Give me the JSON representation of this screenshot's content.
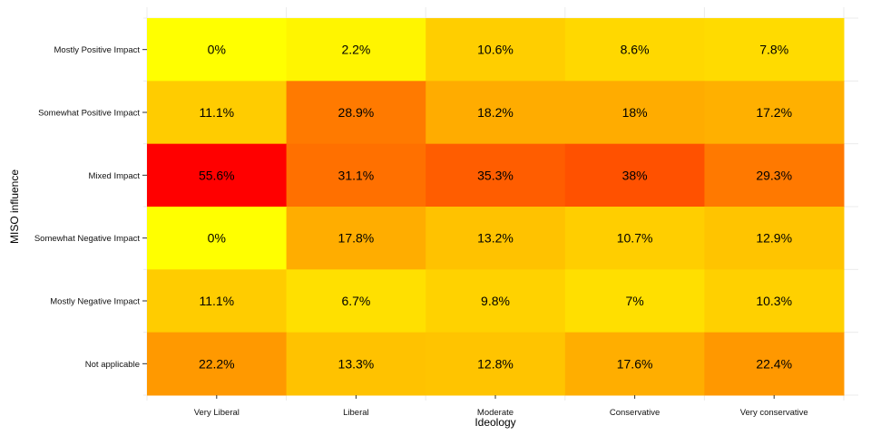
{
  "chart_data": {
    "type": "heatmap",
    "title": "",
    "xlabel": "Ideology",
    "ylabel": "MISO influence",
    "x_categories": [
      "Very Liberal",
      "Liberal",
      "Moderate",
      "Conservative",
      "Very conservative"
    ],
    "y_categories": [
      "Mostly Positive Impact",
      "Somewhat Positive Impact",
      "Mixed Impact",
      "Somewhat Negative Impact",
      "Mostly Negative Impact",
      "Not applicable"
    ],
    "values": [
      [
        0,
        2.2,
        10.6,
        8.6,
        7.8
      ],
      [
        11.1,
        28.9,
        18.2,
        18,
        17.2
      ],
      [
        55.6,
        31.1,
        35.3,
        38,
        29.3
      ],
      [
        0,
        17.8,
        13.2,
        10.7,
        12.9
      ],
      [
        11.1,
        6.7,
        9.8,
        7,
        10.3
      ],
      [
        22.2,
        13.3,
        12.8,
        17.6,
        22.4
      ]
    ],
    "labels": [
      [
        "0%",
        "2.2%",
        "10.6%",
        "8.6%",
        "7.8%"
      ],
      [
        "11.1%",
        "28.9%",
        "18.2%",
        "18%",
        "17.2%"
      ],
      [
        "55.6%",
        "31.1%",
        "35.3%",
        "38%",
        "29.3%"
      ],
      [
        "0%",
        "17.8%",
        "13.2%",
        "10.7%",
        "12.9%"
      ],
      [
        "11.1%",
        "6.7%",
        "9.8%",
        "7%",
        "10.3%"
      ],
      [
        "22.2%",
        "13.3%",
        "12.8%",
        "17.6%",
        "22.4%"
      ]
    ],
    "color_scale": {
      "low": "#ffff00",
      "high": "#ff0000"
    },
    "grid": true,
    "legend": "none"
  }
}
